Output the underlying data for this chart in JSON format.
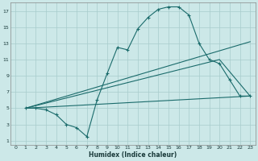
{
  "xlabel": "Humidex (Indice chaleur)",
  "background_color": "#cce8e8",
  "grid_color": "#a8cccc",
  "line_color": "#1a6b6b",
  "xlim": [
    -0.5,
    23.5
  ],
  "ylim": [
    0.5,
    18
  ],
  "xticks": [
    0,
    1,
    2,
    3,
    4,
    5,
    6,
    7,
    8,
    9,
    10,
    11,
    12,
    13,
    14,
    15,
    16,
    17,
    18,
    19,
    20,
    21,
    22,
    23
  ],
  "yticks": [
    1,
    3,
    5,
    7,
    9,
    11,
    13,
    15,
    17
  ],
  "line1_x": [
    1,
    2,
    3,
    4,
    5,
    6,
    7,
    8,
    9,
    10,
    11,
    12,
    13,
    14,
    15,
    16,
    17,
    18,
    19,
    20,
    21,
    22,
    23
  ],
  "line1_y": [
    5,
    5,
    4.8,
    4.2,
    3.0,
    2.6,
    1.5,
    6.0,
    9.3,
    12.5,
    12.2,
    14.8,
    16.2,
    17.2,
    17.5,
    17.5,
    16.5,
    13.0,
    11.0,
    10.5,
    8.5,
    6.5,
    6.5
  ],
  "line2_x": [
    1,
    23
  ],
  "line2_y": [
    5,
    6.5
  ],
  "line3_x": [
    1,
    23
  ],
  "line3_y": [
    5,
    13.2
  ],
  "line4_x": [
    1,
    20,
    23
  ],
  "line4_y": [
    5,
    11.0,
    6.5
  ]
}
